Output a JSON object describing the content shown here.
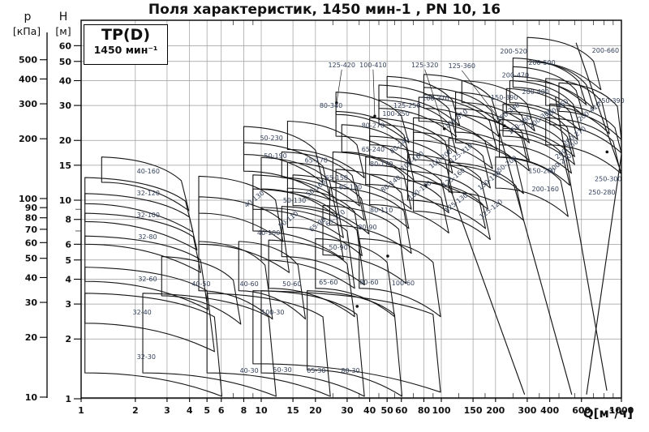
{
  "title": "Поля характеристик, 1450 мин-1 , PN 10, 16",
  "legend": {
    "line1": "TP(D)",
    "line2": "1450 мин⁻¹"
  },
  "axes": {
    "p": {
      "name": "p",
      "unit": "[кПа]",
      "ticks": [
        500,
        400,
        300,
        200,
        100,
        90,
        80,
        70,
        60,
        50,
        40,
        30,
        20,
        10
      ]
    },
    "h": {
      "name": "H",
      "unit": "[м]",
      "ticks": [
        60,
        50,
        40,
        30,
        20,
        15,
        10,
        8,
        6,
        5,
        4,
        3,
        2,
        1
      ],
      "minor": [
        7,
        9
      ]
    },
    "q": {
      "label": "Q[м³/ч]",
      "ticks": [
        1,
        2,
        3,
        4,
        5,
        6,
        8,
        10,
        15,
        20,
        30,
        40,
        50,
        60,
        80,
        100,
        150,
        200,
        300,
        400,
        600,
        1000
      ],
      "minor": [
        7,
        9,
        25,
        35,
        45,
        55,
        70,
        90,
        125,
        175,
        250,
        350,
        450,
        550,
        700,
        800,
        900
      ]
    }
  },
  "chart_data": {
    "type": "area",
    "title": "Поля характеристик, 1450 мин-1 , PN 10, 16",
    "xlabel": "Q[м³/ч]",
    "ylabel": "H [м]",
    "x_range": [
      1,
      1000
    ],
    "y_range": [
      1,
      80
    ],
    "grid": true,
    "note": "Log-log map of pump operating fields; each field = [label, labelQ, labelH, rotated, box q1,q2,H_topleft,H_bottomleft]",
    "fields": [
      [
        "32-30",
        2.3,
        1.63,
        0,
        [
          1.05,
          5.5,
          3.4,
          1.35
        ]
      ],
      [
        "32-40",
        2.18,
        2.73,
        0,
        [
          1.05,
          5.0,
          4.6,
          2.4
        ]
      ],
      [
        "32-60",
        2.34,
        4.02,
        0,
        [
          1.05,
          4.6,
          6.6,
          3.9
        ]
      ],
      [
        "32-80",
        2.34,
        6.55,
        0,
        [
          1.05,
          4.2,
          8.6,
          6.0
        ]
      ],
      [
        "32-100",
        2.36,
        8.44,
        0,
        [
          1.05,
          4.0,
          10.8,
          7.8
        ]
      ],
      [
        "32-120",
        2.36,
        10.9,
        0,
        [
          1.05,
          3.8,
          13.0,
          9.6
        ]
      ],
      [
        "40-160",
        2.36,
        14.0,
        0,
        [
          1.3,
          3.6,
          16.5,
          12.3
        ]
      ],
      [
        "40-30",
        8.57,
        1.39,
        0,
        [
          2.2,
          11,
          3.4,
          1.35
        ]
      ],
      [
        "40-50",
        4.64,
        3.8,
        0,
        [
          2.8,
          7,
          5.2,
          3.3
        ]
      ],
      [
        "40-60",
        8.57,
        3.8,
        0,
        [
          4.5,
          10.5,
          6.2,
          3.5
        ]
      ],
      [
        "50-60",
        14.8,
        3.8,
        0,
        [
          7.5,
          16,
          6.2,
          3.5
        ]
      ],
      [
        "100-30",
        11.6,
        2.73,
        0,
        [
          9,
          90,
          3.5,
          1.5
        ]
      ],
      [
        "50-30",
        13.1,
        1.4,
        0,
        [
          5,
          22,
          3.4,
          1.35
        ]
      ],
      [
        "65-30",
        20.2,
        1.39,
        0,
        [
          10,
          34,
          3.5,
          1.35
        ]
      ],
      [
        "80-30",
        31.3,
        1.39,
        0,
        [
          18,
          55,
          3.5,
          1.4
        ]
      ],
      [
        "65-60",
        23.6,
        3.87,
        0,
        [
          11,
          30,
          6.3,
          3.6
        ]
      ],
      [
        "80-60",
        39.7,
        3.87,
        0,
        [
          20,
          50,
          6.4,
          3.6
        ]
      ],
      [
        "100-60",
        61.4,
        3.83,
        0,
        [
          35,
          90,
          6.4,
          3.6
        ]
      ],
      [
        "40-100",
        11.0,
        6.87,
        0,
        [
          4.5,
          13,
          10.4,
          6.0
        ]
      ],
      [
        "40-130",
        9.3,
        10.2,
        1,
        [
          4.5,
          12,
          13.2,
          8.6
        ]
      ],
      [
        "50-90",
        26.8,
        5.8,
        0,
        [
          10,
          30,
          9.2,
          5.0
        ]
      ],
      [
        "50-110",
        14.4,
        8.05,
        1,
        [
          9,
          26,
          11.4,
          7.0
        ]
      ],
      [
        "50-130",
        15.3,
        10.0,
        0,
        [
          9,
          26,
          13.4,
          9.0
        ]
      ],
      [
        "50-160",
        20.5,
        11.6,
        1,
        [
          10,
          24,
          16.4,
          11.4
        ]
      ],
      [
        "50-190",
        12.0,
        16.8,
        0,
        [
          8,
          22,
          19.5,
          14.0
        ]
      ],
      [
        "50-230",
        11.4,
        20.6,
        0,
        [
          8,
          20,
          23.5,
          17.0
        ]
      ],
      [
        "65-90",
        20.9,
        7.6,
        1,
        [
          13,
          34,
          9.3,
          5.2
        ]
      ],
      [
        "65-110",
        26.2,
        8.2,
        1,
        [
          14,
          33,
          11.5,
          7.3
        ]
      ],
      [
        "65-130",
        31.3,
        11.7,
        0,
        [
          15,
          36,
          13.4,
          9.4
        ]
      ],
      [
        "65-150",
        26.2,
        13.0,
        0,
        [
          14,
          34,
          15.5,
          11.0
        ]
      ],
      [
        "65-170",
        20.2,
        15.9,
        0,
        [
          13,
          32,
          17.5,
          13.0
        ]
      ],
      [
        "65-240",
        41.8,
        18.1,
        0,
        [
          14,
          34,
          25,
          18
        ]
      ],
      [
        "80-90",
        38.9,
        7.32,
        0,
        [
          22,
          58,
          9.4,
          5.3
        ]
      ],
      [
        "80-110",
        46.5,
        8.93,
        0,
        [
          24,
          62,
          11.6,
          7.5
        ]
      ],
      [
        "80-140",
        53.3,
        12.2,
        1,
        [
          26,
          60,
          14.3,
          10.0
        ]
      ],
      [
        "80-170",
        46.5,
        15.3,
        0,
        [
          25,
          62,
          17.5,
          12.5
        ]
      ],
      [
        "80-240",
        59.7,
        19.1,
        1,
        [
          28,
          64,
          24,
          17.5
        ]
      ],
      [
        "80-270",
        41.8,
        23.9,
        0,
        [
          26,
          62,
          28,
          21
        ]
      ],
      [
        "80-340",
        24.4,
        30.0,
        0,
        [
          26,
          60,
          35,
          27
        ]
      ],
      [
        "100-130",
        77.2,
        11.3,
        1,
        [
          40,
          100,
          13.5,
          9.5
        ]
      ],
      [
        "100-160",
        70.2,
        15.9,
        1,
        [
          38,
          100,
          16.5,
          12
        ]
      ],
      [
        "100-200",
        101,
        16.3,
        1,
        [
          40,
          105,
          21,
          15
        ]
      ],
      [
        "100-250",
        56.0,
        27.4,
        0,
        [
          40,
          105,
          26,
          19
        ]
      ],
      [
        "100-310",
        123,
        25.9,
        1,
        [
          45,
          110,
          32,
          24
        ]
      ],
      [
        "100-370",
        93,
        32.7,
        0,
        [
          45,
          110,
          38,
          29
        ]
      ],
      [
        "100-410",
        41.8,
        48.0,
        0,
        [
          50,
          115,
          42,
          33
        ]
      ],
      [
        "125-120",
        192,
        9.1,
        1,
        [
          70,
          170,
          12.5,
          8.8
        ]
      ],
      [
        "125-130",
        123,
        9.8,
        1,
        [
          65,
          160,
          14,
          10
        ]
      ],
      [
        "125-160",
        119,
        13.1,
        1,
        [
          65,
          165,
          17,
          12.5
        ]
      ],
      [
        "125-210",
        131,
        17.4,
        1,
        [
          70,
          170,
          22,
          16
        ]
      ],
      [
        "125-250",
        64.5,
        30.0,
        0,
        [
          70,
          175,
          26,
          20
        ]
      ],
      [
        "125-320",
        81,
        48.0,
        0,
        [
          75,
          185,
          33,
          25
        ]
      ],
      [
        "125-360",
        130,
        47.5,
        0,
        [
          80,
          190,
          37,
          29
        ]
      ],
      [
        "125-420",
        28.0,
        48.0,
        0,
        [
          80,
          190,
          43,
          34
        ]
      ],
      [
        "150-150",
        188,
        12.7,
        1,
        [
          110,
          260,
          15.5,
          11
        ]
      ],
      [
        "150-200",
        231,
        15.1,
        1,
        [
          110,
          260,
          20.5,
          15
        ]
      ],
      [
        "150-260",
        362,
        14.1,
        0,
        [
          120,
          280,
          27,
          19.5
        ]
      ],
      [
        "150-280",
        277,
        24.2,
        1,
        [
          120,
          280,
          29,
          22
        ]
      ],
      [
        "150-340",
        239,
        27.9,
        1,
        [
          120,
          280,
          35,
          27
        ]
      ],
      [
        "150-390",
        224,
        33.0,
        0,
        [
          130,
          300,
          40,
          31
        ]
      ],
      [
        "200-160",
        378,
        11.4,
        0,
        [
          200,
          460,
          16.5,
          11.5
        ]
      ],
      [
        "200-220",
        464,
        15.5,
        1,
        [
          210,
          470,
          22.5,
          16.5
        ]
      ],
      [
        "200-250",
        505,
        18.2,
        1,
        [
          210,
          480,
          25.5,
          19
        ]
      ],
      [
        "200-270",
        558,
        21.2,
        1,
        [
          220,
          500,
          27.5,
          21
        ]
      ],
      [
        "200-300",
        362,
        26.1,
        1,
        [
          220,
          500,
          30.5,
          23
        ]
      ],
      [
        "200-360",
        445,
        29.2,
        1,
        [
          230,
          520,
          36.5,
          28
        ]
      ],
      [
        "200-400",
        334,
        35.2,
        0,
        [
          240,
          540,
          40,
          31
        ]
      ],
      [
        "200-410",
        674,
        28.1,
        1,
        [
          380,
          780,
          41,
          30
        ]
      ],
      [
        "200-470",
        258,
        42.8,
        0,
        [
          250,
          560,
          47,
          37
        ]
      ],
      [
        "200-500",
        362,
        49.4,
        0,
        [
          300,
          640,
          50,
          40
        ]
      ],
      [
        "200-520",
        252,
        56.4,
        0,
        [
          250,
          580,
          52,
          42
        ]
      ],
      [
        "200-660",
        816,
        56.9,
        0,
        [
          300,
          700,
          66,
          50
        ]
      ],
      [
        "250-280",
        779,
        11.0,
        0,
        [
          380,
          900,
          26,
          19
        ]
      ],
      [
        "250-300",
        845,
        12.8,
        0,
        [
          400,
          920,
          30.5,
          24
        ]
      ],
      [
        "250-390",
        874,
        31.8,
        0,
        [
          450,
          950,
          39,
          28
        ]
      ]
    ],
    "markers": [
      [
        26.2,
        30.9
      ],
      [
        42.7,
        26.5
      ],
      [
        104,
        22.9
      ],
      [
        224,
        23.7
      ],
      [
        82,
        11.9
      ],
      [
        50.4,
        5.23
      ],
      [
        34.1,
        2.92
      ],
      [
        832,
        17.5
      ]
    ],
    "leaders": [
      [
        [
          28,
          45.5
        ],
        [
          26.2,
          30.9
        ]
      ],
      [
        [
          41.8,
          45.5
        ],
        [
          42.7,
          26.5
        ]
      ],
      [
        [
          81,
          45.5
        ],
        [
          104,
          22.9
        ]
      ],
      [
        [
          130,
          45
        ],
        [
          224,
          23.7
        ]
      ]
    ],
    "extra_lines": [
      [
        [
          110,
          12
        ],
        [
          290,
          1.05
        ]
      ],
      [
        [
          210,
          22
        ],
        [
          530,
          1.05
        ]
      ],
      [
        [
          430,
          33
        ],
        [
          830,
          1.1
        ]
      ],
      [
        [
          1000,
          17
        ],
        [
          640,
          1.05
        ]
      ],
      [
        [
          560,
          62
        ],
        [
          990,
          14
        ]
      ]
    ]
  }
}
